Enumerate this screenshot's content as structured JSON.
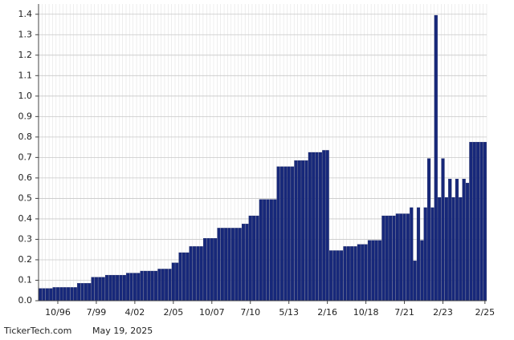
{
  "chart_data": {
    "type": "bar",
    "source": "TickerTech.com",
    "date": "May 19, 2025",
    "color": "#17287a",
    "grid": true,
    "categories": [
      null,
      null,
      null,
      null,
      null,
      "10/96",
      null,
      null,
      null,
      null,
      null,
      null,
      null,
      null,
      null,
      null,
      "7/99",
      null,
      null,
      null,
      null,
      null,
      null,
      null,
      null,
      null,
      null,
      "4/02",
      null,
      null,
      null,
      null,
      null,
      null,
      null,
      null,
      null,
      null,
      "2/05",
      null,
      null,
      null,
      null,
      null,
      null,
      null,
      null,
      null,
      null,
      "10/07",
      null,
      null,
      null,
      null,
      null,
      null,
      null,
      null,
      null,
      null,
      "7/10",
      null,
      null,
      null,
      null,
      null,
      null,
      null,
      null,
      null,
      null,
      "5/13",
      null,
      null,
      null,
      null,
      null,
      null,
      null,
      null,
      null,
      null,
      "2/16",
      null,
      null,
      null,
      null,
      null,
      null,
      null,
      null,
      null,
      null,
      "10/18",
      null,
      null,
      null,
      null,
      null,
      null,
      null,
      null,
      null,
      null,
      "7/21",
      null,
      null,
      null,
      null,
      null,
      null,
      null,
      null,
      null,
      null,
      "2/23",
      null,
      null,
      null,
      null,
      null,
      null,
      null,
      null,
      null,
      null,
      null,
      "2/25"
    ],
    "values": [
      0.06,
      0.06,
      0.06,
      0.06,
      0.065,
      0.065,
      0.065,
      0.065,
      0.065,
      0.065,
      0.065,
      0.085,
      0.085,
      0.085,
      0.085,
      0.115,
      0.115,
      0.115,
      0.115,
      0.125,
      0.125,
      0.125,
      0.125,
      0.125,
      0.125,
      0.135,
      0.135,
      0.135,
      0.135,
      0.145,
      0.145,
      0.145,
      0.145,
      0.145,
      0.155,
      0.155,
      0.155,
      0.155,
      0.185,
      0.185,
      0.235,
      0.235,
      0.235,
      0.265,
      0.265,
      0.265,
      0.265,
      0.305,
      0.305,
      0.305,
      0.305,
      0.355,
      0.355,
      0.355,
      0.355,
      0.355,
      0.355,
      0.355,
      0.375,
      0.375,
      0.415,
      0.415,
      0.415,
      0.495,
      0.495,
      0.495,
      0.495,
      0.495,
      0.655,
      0.655,
      0.655,
      0.655,
      0.655,
      0.685,
      0.685,
      0.685,
      0.685,
      0.725,
      0.725,
      0.725,
      0.725,
      0.735,
      0.735,
      0.245,
      0.245,
      0.245,
      0.245,
      0.265,
      0.265,
      0.265,
      0.265,
      0.275,
      0.275,
      0.275,
      0.295,
      0.295,
      0.295,
      0.295,
      0.415,
      0.415,
      0.415,
      0.415,
      0.425,
      0.425,
      0.425,
      0.425,
      0.455,
      0.195,
      0.455,
      0.295,
      0.455,
      0.695,
      0.455,
      1.395,
      0.505,
      0.695,
      0.505,
      0.595,
      0.505,
      0.595,
      0.505,
      0.595,
      0.575,
      0.775,
      0.775,
      0.775,
      0.775,
      0.775
    ],
    "ylim": [
      0,
      1.45
    ],
    "yticks": [
      {
        "value": 0,
        "label": "0.0"
      },
      0.1,
      0.2,
      0.3,
      0.4,
      0.5,
      0.6,
      0.7,
      0.8,
      0.9,
      {
        "value": 1,
        "label": "1.0"
      },
      1.1,
      1.2,
      1.3,
      1.4
    ]
  }
}
